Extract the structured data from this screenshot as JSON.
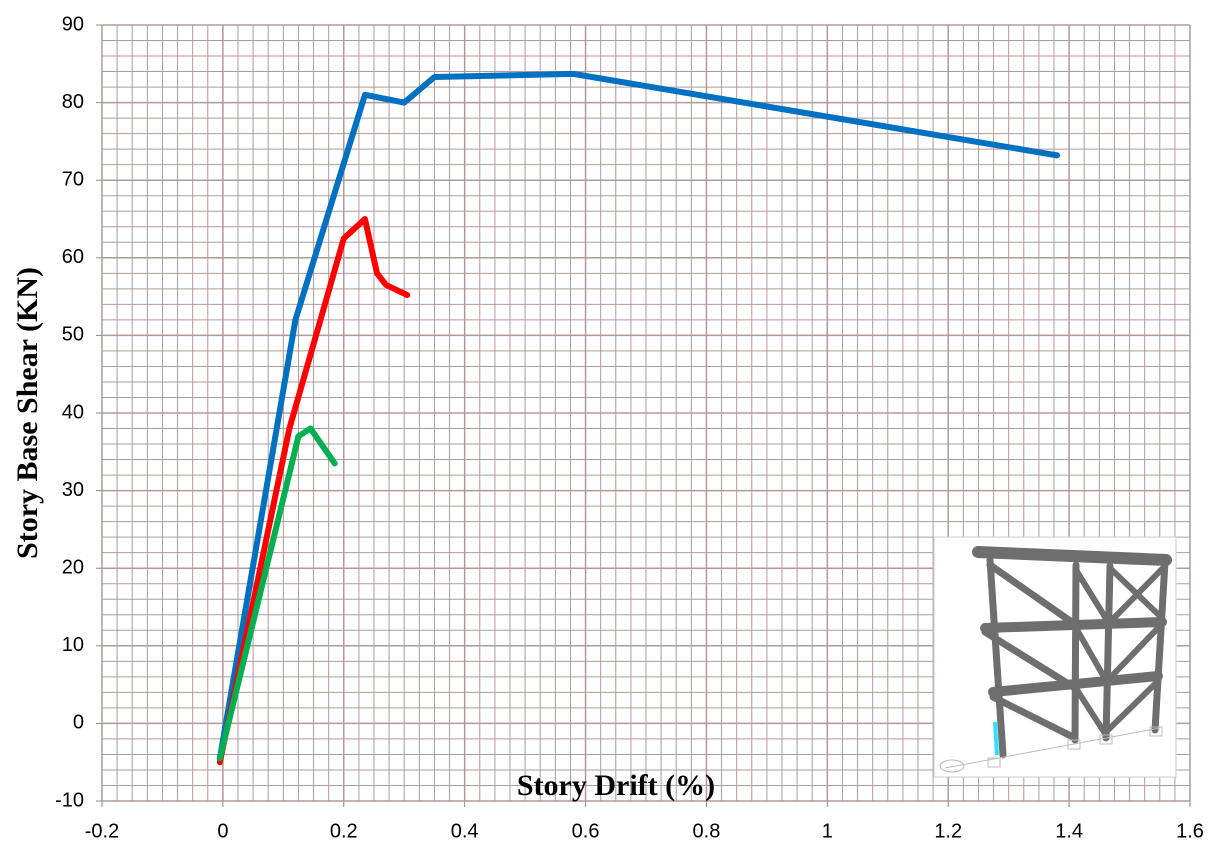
{
  "chart_data": {
    "type": "line",
    "xlabel": "Story Drift (%)",
    "ylabel": "Story Base Shear (KN)",
    "xlim": [
      -0.2,
      1.6
    ],
    "ylim": [
      -10,
      90
    ],
    "xticks": [
      -0.2,
      0,
      0.2,
      0.4,
      0.6,
      0.8,
      1,
      1.2,
      1.4,
      1.6
    ],
    "yticks": [
      -10,
      0,
      10,
      20,
      30,
      40,
      50,
      60,
      70,
      80,
      90
    ],
    "grid": true,
    "minor_grid": {
      "x": 0.025,
      "y": 2
    },
    "grid_color": "#b39a9a",
    "series": [
      {
        "color": "#0070c0",
        "x": [
          -0.005,
          0.12,
          0.235,
          0.3,
          0.35,
          0.58,
          1.38
        ],
        "values": [
          -4.5,
          52,
          81,
          80,
          83.3,
          83.7,
          73.2
        ]
      },
      {
        "color": "#ff0000",
        "x": [
          -0.005,
          0.11,
          0.2,
          0.235,
          0.255,
          0.27,
          0.305
        ],
        "values": [
          -5,
          38,
          62.5,
          65,
          58,
          56.5,
          55.2
        ]
      },
      {
        "color": "#00b050",
        "x": [
          -0.005,
          0.125,
          0.145,
          0.185
        ],
        "values": [
          -4.5,
          37,
          38,
          33.5
        ]
      }
    ]
  }
}
